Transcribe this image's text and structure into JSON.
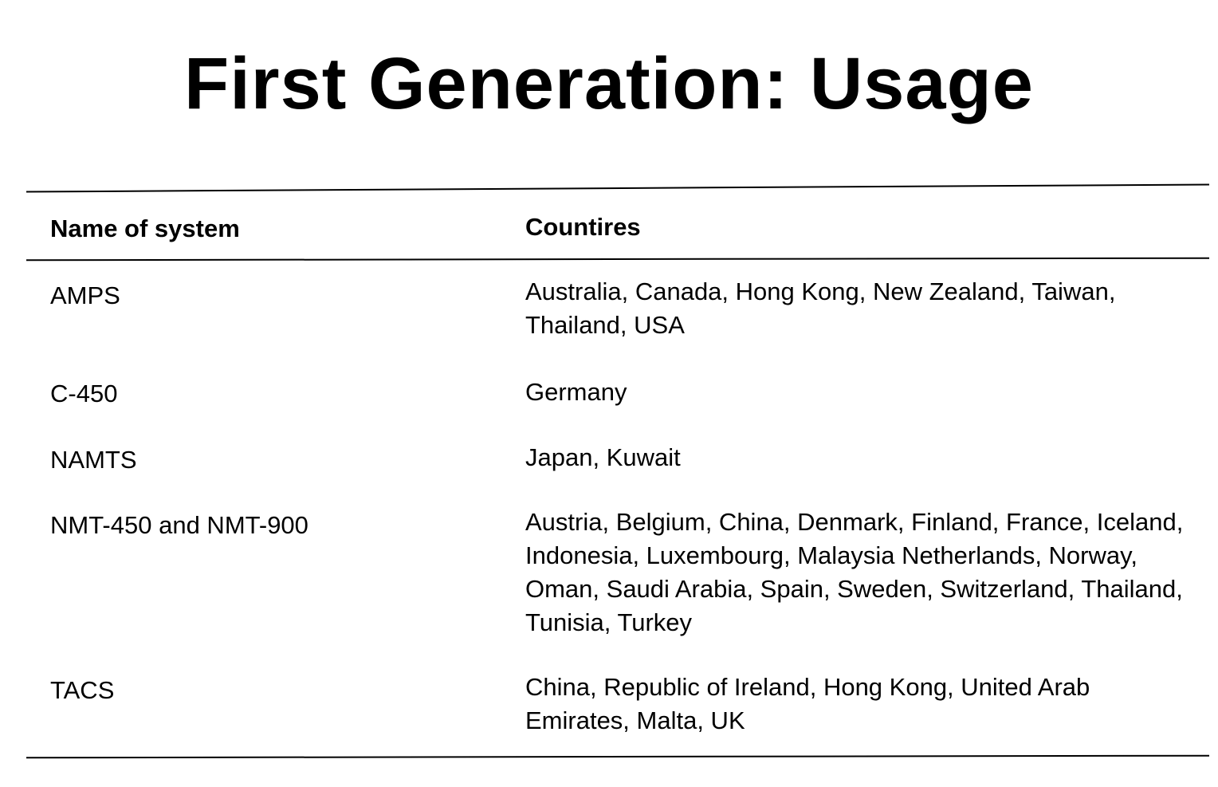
{
  "title": "First Generation: Usage",
  "table": {
    "headers": [
      "Name of system",
      "Countires"
    ],
    "rows": [
      {
        "system": "AMPS",
        "countries": "Australia, Canada, Hong Kong, New Zealand, Taiwan, Thailand, USA"
      },
      {
        "system": "C-450",
        "countries": "Germany"
      },
      {
        "system": "NAMTS",
        "countries": "Japan, Kuwait"
      },
      {
        "system": "NMT-450 and NMT-900",
        "countries": "Austria, Belgium, China, Denmark, Finland, France, Iceland, Indonesia, Luxembourg, Malaysia Netherlands, Norway, Oman, Saudi Arabia, Spain, Sweden, Switzerland, Thailand, Tunisia, Turkey"
      },
      {
        "system": "TACS",
        "countries": "China, Republic of Ireland, Hong Kong, United Arab Emirates, Malta, UK"
      }
    ]
  }
}
